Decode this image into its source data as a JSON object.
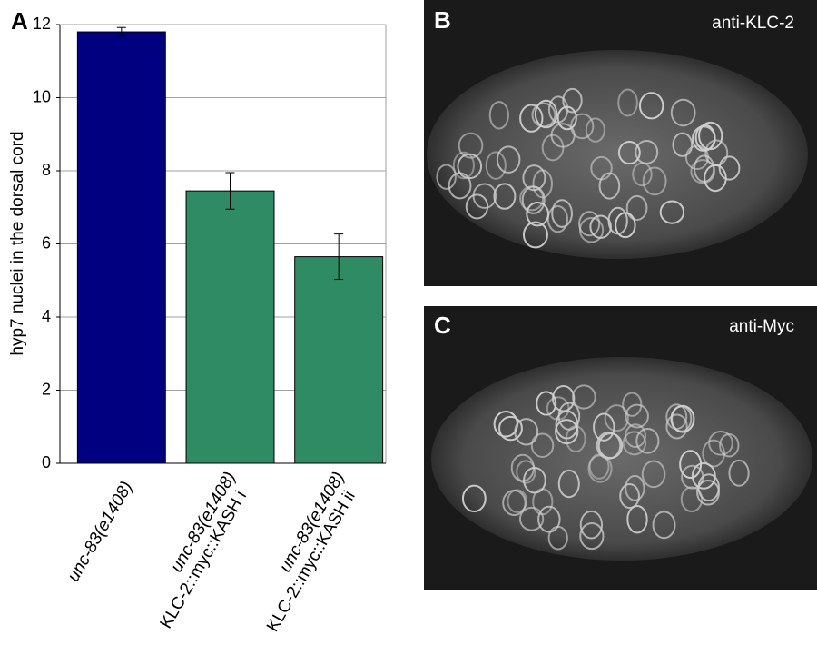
{
  "chart_data": {
    "type": "bar",
    "panel": "A",
    "ylabel": "hyp7 nuclei in the dorsal cord",
    "categories": [
      [
        "unc-83(e1408)"
      ],
      [
        "unc-83(e1408)",
        "KLC-2::myc::KASH i"
      ],
      [
        "unc-83(e1408)",
        "KLC-2::myc::KASH ii"
      ]
    ],
    "values": [
      11.8,
      7.45,
      5.65
    ],
    "errors": [
      0.12,
      0.5,
      0.62
    ],
    "colors": [
      "#000080",
      "#2e8b63",
      "#2e8b63"
    ],
    "ylim": [
      0,
      12
    ],
    "yticks": [
      0,
      2,
      4,
      6,
      8,
      10,
      12
    ],
    "grid": true
  },
  "panels": [
    {
      "letter": "B",
      "label": "anti-KLC-2"
    },
    {
      "letter": "C",
      "label": "anti-Myc"
    }
  ]
}
